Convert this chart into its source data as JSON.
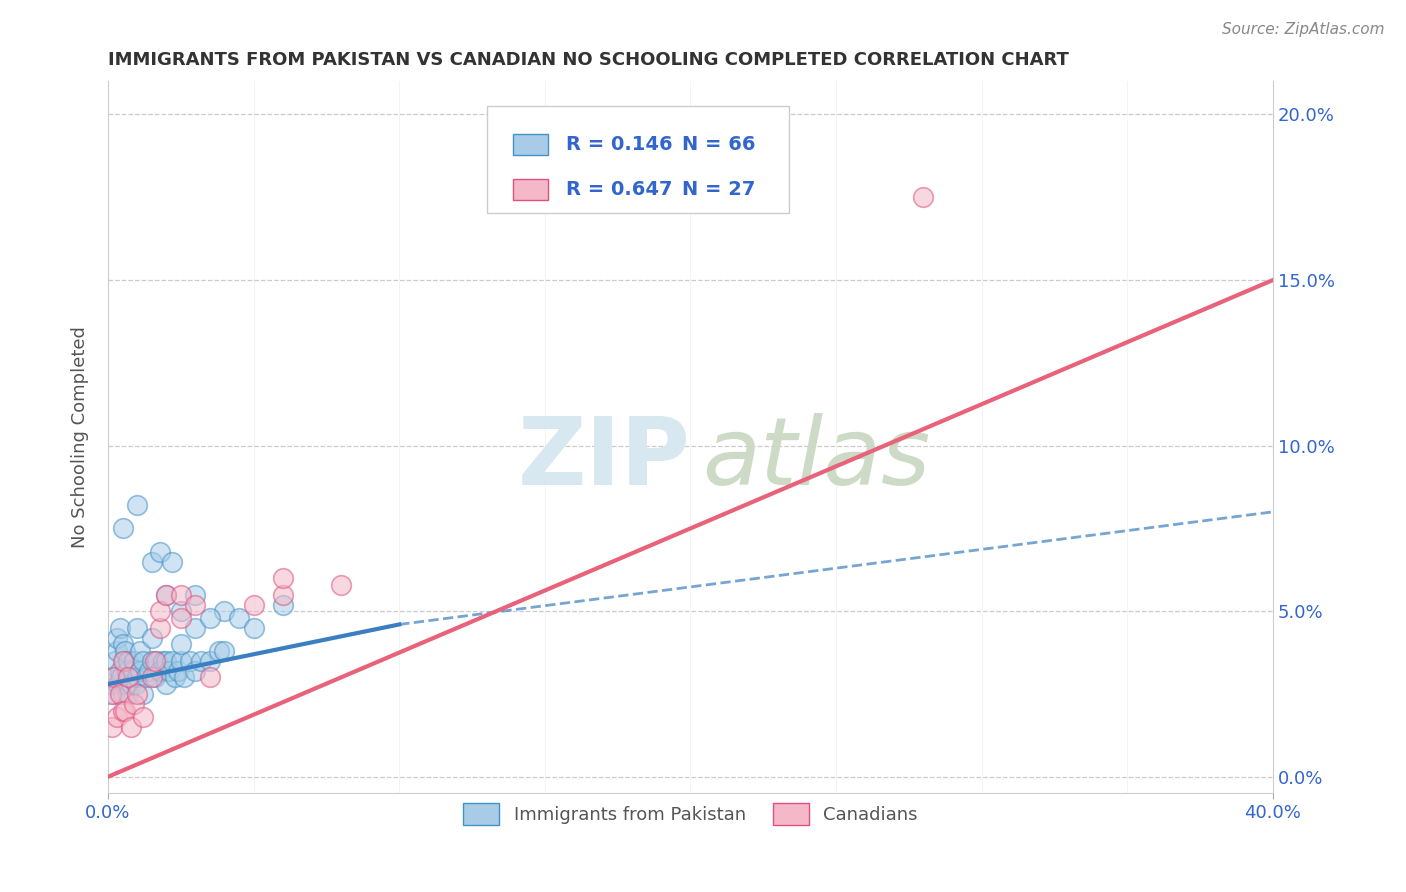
{
  "title": "IMMIGRANTS FROM PAKISTAN VS CANADIAN NO SCHOOLING COMPLETED CORRELATION CHART",
  "source": "Source: ZipAtlas.com",
  "ylabel": "No Schooling Completed",
  "yticks_labels": [
    "0.0%",
    "5.0%",
    "10.0%",
    "15.0%",
    "20.0%"
  ],
  "ytick_vals": [
    0,
    5,
    10,
    15,
    20
  ],
  "xtick_labels": [
    "0.0%",
    "40.0%"
  ],
  "xtick_vals": [
    0,
    40
  ],
  "xlim": [
    0,
    40
  ],
  "ylim": [
    -0.5,
    21
  ],
  "legend_r1": "0.146",
  "legend_n1": "66",
  "legend_r2": "0.647",
  "legend_n2": "27",
  "color_blue": "#a8cce8",
  "color_blue_edge": "#4292c6",
  "color_pink": "#f4b8c8",
  "color_pink_edge": "#e05080",
  "color_blue_line": "#3a7fc1",
  "color_pink_line": "#e8637a",
  "color_dashed": "#a8cce8",
  "watermark_color": "#d8e8f0",
  "pakistan_points": [
    [
      0.1,
      2.8
    ],
    [
      0.15,
      3.0
    ],
    [
      0.2,
      2.5
    ],
    [
      0.25,
      3.5
    ],
    [
      0.3,
      3.8
    ],
    [
      0.3,
      4.2
    ],
    [
      0.35,
      2.8
    ],
    [
      0.4,
      3.2
    ],
    [
      0.4,
      4.5
    ],
    [
      0.45,
      3.0
    ],
    [
      0.5,
      2.5
    ],
    [
      0.5,
      4.0
    ],
    [
      0.55,
      3.5
    ],
    [
      0.6,
      2.8
    ],
    [
      0.6,
      3.8
    ],
    [
      0.65,
      3.2
    ],
    [
      0.7,
      2.5
    ],
    [
      0.7,
      3.5
    ],
    [
      0.75,
      3.0
    ],
    [
      0.8,
      2.8
    ],
    [
      0.85,
      3.2
    ],
    [
      0.9,
      3.5
    ],
    [
      0.95,
      2.8
    ],
    [
      1.0,
      3.0
    ],
    [
      1.0,
      4.5
    ],
    [
      1.1,
      3.2
    ],
    [
      1.1,
      3.8
    ],
    [
      1.2,
      2.5
    ],
    [
      1.2,
      3.5
    ],
    [
      1.3,
      3.0
    ],
    [
      1.4,
      3.2
    ],
    [
      1.5,
      3.5
    ],
    [
      1.5,
      4.2
    ],
    [
      1.6,
      3.0
    ],
    [
      1.7,
      3.5
    ],
    [
      1.8,
      3.2
    ],
    [
      1.9,
      3.5
    ],
    [
      2.0,
      2.8
    ],
    [
      2.0,
      3.5
    ],
    [
      2.1,
      3.2
    ],
    [
      2.2,
      3.5
    ],
    [
      2.3,
      3.0
    ],
    [
      2.4,
      3.2
    ],
    [
      2.5,
      3.5
    ],
    [
      2.6,
      3.0
    ],
    [
      2.8,
      3.5
    ],
    [
      3.0,
      3.2
    ],
    [
      3.2,
      3.5
    ],
    [
      3.5,
      3.5
    ],
    [
      3.8,
      3.8
    ],
    [
      0.5,
      7.5
    ],
    [
      1.0,
      8.2
    ],
    [
      1.5,
      6.5
    ],
    [
      2.0,
      5.5
    ],
    [
      2.5,
      5.0
    ],
    [
      3.0,
      5.5
    ],
    [
      4.0,
      5.0
    ],
    [
      4.5,
      4.8
    ],
    [
      5.0,
      4.5
    ],
    [
      6.0,
      5.2
    ],
    [
      1.8,
      6.8
    ],
    [
      2.2,
      6.5
    ],
    [
      3.0,
      4.5
    ],
    [
      3.5,
      4.8
    ],
    [
      4.0,
      3.8
    ],
    [
      2.5,
      4.0
    ]
  ],
  "canadian_points": [
    [
      0.1,
      2.5
    ],
    [
      0.15,
      1.5
    ],
    [
      0.2,
      3.0
    ],
    [
      0.3,
      1.8
    ],
    [
      0.4,
      2.5
    ],
    [
      0.5,
      2.0
    ],
    [
      0.5,
      3.5
    ],
    [
      0.6,
      2.0
    ],
    [
      0.7,
      3.0
    ],
    [
      0.8,
      1.5
    ],
    [
      0.9,
      2.2
    ],
    [
      1.0,
      2.5
    ],
    [
      1.2,
      1.8
    ],
    [
      1.5,
      3.0
    ],
    [
      1.6,
      3.5
    ],
    [
      1.8,
      4.5
    ],
    [
      1.8,
      5.0
    ],
    [
      2.0,
      5.5
    ],
    [
      2.5,
      4.8
    ],
    [
      2.5,
      5.5
    ],
    [
      3.0,
      5.2
    ],
    [
      3.5,
      3.0
    ],
    [
      5.0,
      5.2
    ],
    [
      6.0,
      5.5
    ],
    [
      6.0,
      6.0
    ],
    [
      8.0,
      5.8
    ],
    [
      28.0,
      17.5
    ]
  ],
  "blue_line_x0": 0,
  "blue_line_y0": 2.8,
  "blue_line_x1": 10,
  "blue_line_y1": 4.6,
  "blue_dash_x0": 10,
  "blue_dash_y0": 4.6,
  "blue_dash_x1": 40,
  "blue_dash_y1": 8.0,
  "pink_line_x0": 0,
  "pink_line_y0": 0.0,
  "pink_line_x1": 40,
  "pink_line_y1": 15.0
}
